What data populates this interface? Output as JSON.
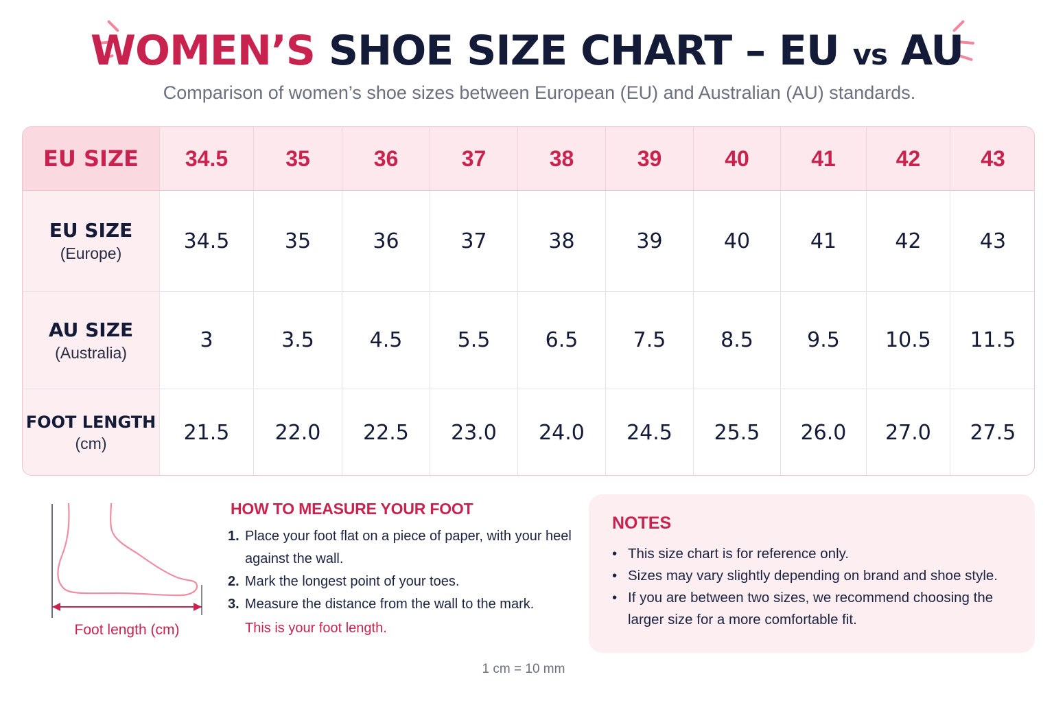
{
  "header": {
    "title_part1": "WOMEN’S",
    "title_part2": "SHOE SIZE CHART – EU",
    "title_vs": "vs",
    "title_part3": "AU",
    "subtitle": "Comparison of women’s shoe sizes between European (EU) and Australian (AU) standards."
  },
  "table": {
    "header_label": "EU SIZE",
    "columns": [
      "34.5",
      "35",
      "36",
      "37",
      "38",
      "39",
      "40",
      "41",
      "42",
      "43"
    ],
    "rows": [
      {
        "label": "EU SIZE",
        "sublabel": "(Europe)",
        "values": [
          "34.5",
          "35",
          "36",
          "37",
          "38",
          "39",
          "40",
          "41",
          "42",
          "43"
        ]
      },
      {
        "label": "AU SIZE",
        "sublabel": "(Australia)",
        "values": [
          "3",
          "3.5",
          "4.5",
          "5.5",
          "6.5",
          "7.5",
          "8.5",
          "9.5",
          "10.5",
          "11.5"
        ]
      },
      {
        "label": "FOOT LENGTH",
        "sublabel": "(cm)",
        "values": [
          "21.5",
          "22.0",
          "22.5",
          "23.0",
          "24.0",
          "24.5",
          "25.5",
          "26.0",
          "27.0",
          "27.5"
        ]
      }
    ]
  },
  "illustration": {
    "caption": "Foot length (cm)",
    "icon": "foot-outline-icon"
  },
  "measure": {
    "title": "HOW TO MEASURE YOUR FOOT",
    "steps": [
      {
        "num": "1.",
        "text": "Place your foot flat on a piece of paper, with your heel against the wall."
      },
      {
        "num": "2.",
        "text": "Mark the longest point of your toes."
      },
      {
        "num": "3.",
        "text": "Measure the distance from the wall to the mark."
      }
    ],
    "final": "This is your foot length."
  },
  "notes": {
    "title": "NOTES",
    "items": [
      "This size chart is for reference only.",
      "Sizes may vary slightly depending on brand and shoe style.",
      "If you are between two sizes, we recommend choosing the larger size for a more comfortable fit."
    ]
  },
  "footnote": "1 cm = 10 mm",
  "colors": {
    "accent": "#c8234f",
    "navy": "#141b38",
    "pink_light": "#fdeef1",
    "pink_header": "#fde8ed",
    "muted": "#6b6f7e"
  }
}
